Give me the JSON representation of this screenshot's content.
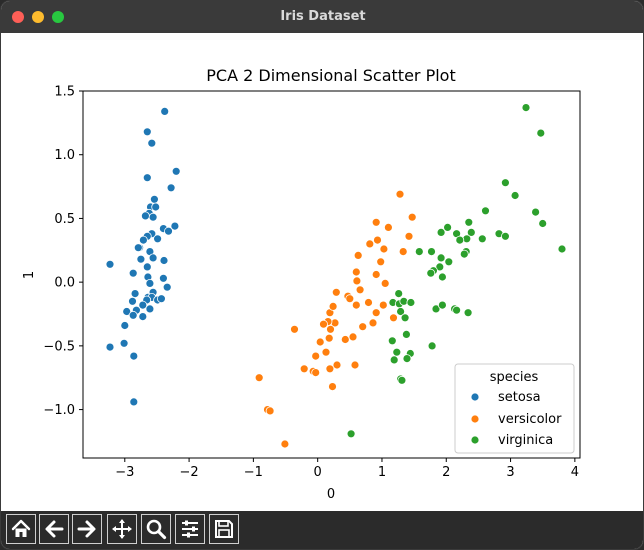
{
  "window": {
    "title": "Iris Dataset"
  },
  "toolbar": {
    "buttons": [
      {
        "name": "home-icon"
      },
      {
        "name": "back-arrow-icon"
      },
      {
        "name": "forward-arrow-icon"
      },
      {
        "name": "pan-move-icon"
      },
      {
        "name": "zoom-magnifier-icon"
      },
      {
        "name": "configure-subplots-icon"
      },
      {
        "name": "save-disk-icon"
      }
    ]
  },
  "chart_data": {
    "type": "scatter",
    "title": "PCA 2 Dimensional Scatter Plot",
    "xlabel": "0",
    "ylabel": "1",
    "xlim": [
      -3.65,
      4.08
    ],
    "ylim": [
      -1.38,
      1.5
    ],
    "xticks": [
      -3,
      -2,
      -1,
      0,
      1,
      2,
      3,
      4
    ],
    "xtick_labels": [
      "−3",
      "−2",
      "−1",
      "0",
      "1",
      "2",
      "3",
      "4"
    ],
    "yticks": [
      -1.0,
      -0.5,
      0.0,
      0.5,
      1.0,
      1.5
    ],
    "ytick_labels": [
      "−1.0",
      "−0.5",
      "0.0",
      "0.5",
      "1.0",
      "1.5"
    ],
    "grid": false,
    "legend": {
      "title": "species",
      "placement": "lower-right"
    },
    "series": [
      {
        "name": "setosa",
        "color": "#1f77b4",
        "points": [
          [
            -2.38,
            1.34
          ],
          [
            -2.65,
            1.18
          ],
          [
            -2.58,
            1.09
          ],
          [
            -2.65,
            0.82
          ],
          [
            -2.2,
            0.87
          ],
          [
            -2.28,
            0.74
          ],
          [
            -2.54,
            0.65
          ],
          [
            -2.6,
            0.59
          ],
          [
            -2.52,
            0.59
          ],
          [
            -2.62,
            0.54
          ],
          [
            -2.56,
            0.51
          ],
          [
            -2.68,
            0.52
          ],
          [
            -2.22,
            0.44
          ],
          [
            -2.4,
            0.42
          ],
          [
            -2.32,
            0.4
          ],
          [
            -2.58,
            0.38
          ],
          [
            -2.65,
            0.36
          ],
          [
            -2.71,
            0.33
          ],
          [
            -2.49,
            0.34
          ],
          [
            -2.77,
            0.27
          ],
          [
            -2.79,
            0.27
          ],
          [
            -2.61,
            0.24
          ],
          [
            -2.56,
            0.19
          ],
          [
            -2.39,
            0.17
          ],
          [
            -2.75,
            0.18
          ],
          [
            -2.65,
            0.12
          ],
          [
            -3.23,
            0.14
          ],
          [
            -2.87,
            0.07
          ],
          [
            -2.64,
            0.04
          ],
          [
            -2.4,
            0.03
          ],
          [
            -2.34,
            -0.04
          ],
          [
            -2.61,
            -0.01
          ],
          [
            -2.56,
            -0.08
          ],
          [
            -2.84,
            -0.09
          ],
          [
            -2.64,
            -0.12
          ],
          [
            -2.58,
            -0.12
          ],
          [
            -2.49,
            -0.14
          ],
          [
            -2.66,
            -0.14
          ],
          [
            -2.43,
            -0.13
          ],
          [
            -2.88,
            -0.15
          ],
          [
            -2.72,
            -0.18
          ],
          [
            -2.61,
            -0.21
          ],
          [
            -2.97,
            -0.23
          ],
          [
            -2.82,
            -0.22
          ],
          [
            -2.72,
            -0.27
          ],
          [
            -2.87,
            -0.26
          ],
          [
            -3.0,
            -0.34
          ],
          [
            -3.23,
            -0.51
          ],
          [
            -3.01,
            -0.48
          ],
          [
            -2.86,
            -0.58
          ],
          [
            -2.86,
            -0.94
          ]
        ]
      },
      {
        "name": "versicolor",
        "color": "#ff7f0e",
        "points": [
          [
            1.28,
            0.69
          ],
          [
            1.47,
            0.51
          ],
          [
            0.91,
            0.47
          ],
          [
            1.1,
            0.43
          ],
          [
            1.42,
            0.36
          ],
          [
            0.93,
            0.33
          ],
          [
            0.81,
            0.3
          ],
          [
            1.03,
            0.26
          ],
          [
            1.33,
            0.24
          ],
          [
            0.63,
            0.21
          ],
          [
            0.98,
            0.16
          ],
          [
            0.6,
            0.08
          ],
          [
            0.91,
            0.06
          ],
          [
            0.61,
            0.01
          ],
          [
            1.05,
            -0.01
          ],
          [
            0.66,
            -0.06
          ],
          [
            0.19,
            -0.24
          ],
          [
            0.29,
            -0.08
          ],
          [
            0.47,
            -0.11
          ],
          [
            0.5,
            -0.13
          ],
          [
            0.6,
            -0.18
          ],
          [
            0.79,
            -0.16
          ],
          [
            0.24,
            -0.19
          ],
          [
            0.91,
            -0.24
          ],
          [
            1.18,
            -0.28
          ],
          [
            0.86,
            -0.32
          ],
          [
            0.27,
            -0.32
          ],
          [
            0.16,
            -0.31
          ],
          [
            0.09,
            -0.33
          ],
          [
            0.7,
            -0.35
          ],
          [
            0.2,
            -0.37
          ],
          [
            -0.36,
            -0.37
          ],
          [
            0.55,
            -0.43
          ],
          [
            0.43,
            -0.45
          ],
          [
            0.18,
            -0.44
          ],
          [
            0.04,
            -0.47
          ],
          [
            -0.03,
            -0.58
          ],
          [
            0.13,
            -0.55
          ],
          [
            0.3,
            -0.65
          ],
          [
            0.58,
            -0.65
          ],
          [
            0.19,
            -0.68
          ],
          [
            -0.21,
            -0.68
          ],
          [
            -0.07,
            -0.7
          ],
          [
            -0.03,
            -0.71
          ],
          [
            0.23,
            -0.82
          ],
          [
            -0.91,
            -0.75
          ],
          [
            -0.78,
            -1.0
          ],
          [
            -0.74,
            -1.01
          ],
          [
            -0.51,
            -1.27
          ],
          [
            1.02,
            -0.18
          ]
        ]
      },
      {
        "name": "virginica",
        "color": "#2ca02c",
        "points": [
          [
            3.24,
            1.37
          ],
          [
            3.47,
            1.17
          ],
          [
            2.92,
            0.78
          ],
          [
            3.07,
            0.68
          ],
          [
            3.39,
            0.55
          ],
          [
            2.61,
            0.56
          ],
          [
            2.35,
            0.47
          ],
          [
            3.5,
            0.46
          ],
          [
            2.02,
            0.43
          ],
          [
            2.16,
            0.38
          ],
          [
            2.39,
            0.39
          ],
          [
            2.32,
            0.34
          ],
          [
            2.56,
            0.34
          ],
          [
            2.82,
            0.38
          ],
          [
            2.92,
            0.36
          ],
          [
            2.21,
            0.33
          ],
          [
            2.31,
            0.24
          ],
          [
            3.8,
            0.26
          ],
          [
            1.92,
            0.39
          ],
          [
            1.58,
            0.24
          ],
          [
            1.77,
            0.24
          ],
          [
            1.92,
            0.19
          ],
          [
            2.28,
            0.22
          ],
          [
            2.04,
            0.16
          ],
          [
            1.9,
            0.12
          ],
          [
            1.8,
            0.09
          ],
          [
            1.94,
            0.04
          ],
          [
            1.76,
            0.07
          ],
          [
            1.26,
            -0.09
          ],
          [
            1.17,
            -0.16
          ],
          [
            1.27,
            -0.17
          ],
          [
            1.34,
            -0.15
          ],
          [
            1.45,
            -0.16
          ],
          [
            1.29,
            -0.23
          ],
          [
            1.36,
            -0.28
          ],
          [
            1.38,
            -0.41
          ],
          [
            1.84,
            -0.21
          ],
          [
            1.94,
            -0.18
          ],
          [
            2.13,
            -0.21
          ],
          [
            2.16,
            -0.22
          ],
          [
            2.34,
            -0.24
          ],
          [
            1.16,
            -0.46
          ],
          [
            1.23,
            -0.55
          ],
          [
            1.44,
            -0.56
          ],
          [
            1.39,
            -0.6
          ],
          [
            1.78,
            -0.5
          ],
          [
            1.19,
            -0.61
          ],
          [
            1.29,
            -0.76
          ],
          [
            1.31,
            -0.77
          ],
          [
            0.52,
            -1.19
          ]
        ]
      }
    ]
  }
}
